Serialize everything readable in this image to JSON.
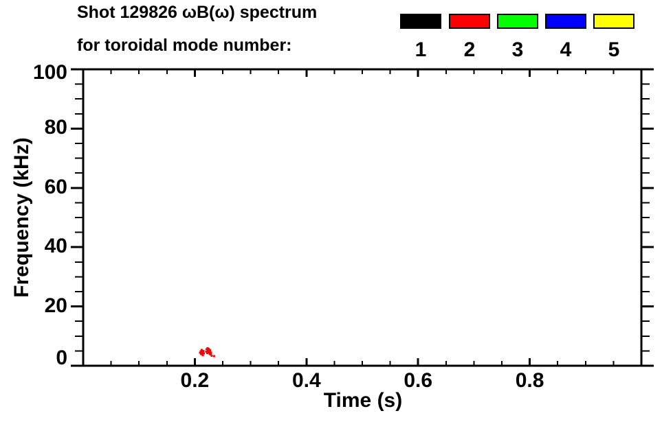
{
  "header": {
    "title_line1": "Shot 129826 ωB(ω) spectrum",
    "title_line2": "for toroidal mode number:"
  },
  "legend": {
    "items": [
      {
        "label": "1",
        "color": "#000000"
      },
      {
        "label": "2",
        "color": "#ff0000"
      },
      {
        "label": "3",
        "color": "#00ff00"
      },
      {
        "label": "4",
        "color": "#0000ff"
      },
      {
        "label": "5",
        "color": "#ffff00"
      }
    ]
  },
  "chart_data": {
    "type": "scatter",
    "title": "Shot 129826 ωB(ω) spectrum for toroidal mode number:",
    "xlabel": "Time (s)",
    "ylabel": "Frequency (kHz)",
    "xlim": [
      0.0,
      1.0
    ],
    "ylim": [
      0,
      100
    ],
    "grid": false,
    "legend_position": "top-right",
    "x_major_ticks": [
      0.2,
      0.4,
      0.6,
      0.8
    ],
    "x_major_tick_labels": [
      "0.2",
      "0.4",
      "0.6",
      "0.8"
    ],
    "x_minor_tick_interval": 0.05,
    "y_major_ticks": [
      0,
      20,
      40,
      60,
      80,
      100
    ],
    "y_major_tick_labels": [
      "0",
      "20",
      "40",
      "60",
      "80",
      "100"
    ],
    "y_minor_tick_interval": 5,
    "axis_color": "#000000",
    "series": [
      {
        "name": "1",
        "color": "#000000",
        "points": []
      },
      {
        "name": "2",
        "color": "#ff0000",
        "points": [
          [
            0.2095,
            4.4
          ],
          [
            0.2103,
            4.9
          ],
          [
            0.211,
            3.9
          ],
          [
            0.2117,
            4.6
          ],
          [
            0.2124,
            5.3
          ],
          [
            0.213,
            4.1
          ],
          [
            0.2137,
            4.7
          ],
          [
            0.2144,
            3.6
          ],
          [
            0.215,
            4.4
          ],
          [
            0.2156,
            5.0
          ],
          [
            0.2162,
            4.2
          ],
          [
            0.2205,
            4.8
          ],
          [
            0.2213,
            5.5
          ],
          [
            0.222,
            4.3
          ],
          [
            0.2228,
            5.9
          ],
          [
            0.2235,
            5.1
          ],
          [
            0.2242,
            4.5
          ],
          [
            0.2249,
            5.7
          ],
          [
            0.2256,
            4.9
          ],
          [
            0.2263,
            4.0
          ],
          [
            0.227,
            5.3
          ],
          [
            0.2277,
            4.6
          ],
          [
            0.2285,
            3.8
          ],
          [
            0.2292,
            4.4
          ],
          [
            0.23,
            3.4
          ],
          [
            0.2346,
            3.2
          ]
        ]
      },
      {
        "name": "3",
        "color": "#00ff00",
        "points": []
      },
      {
        "name": "4",
        "color": "#0000ff",
        "points": []
      },
      {
        "name": "5",
        "color": "#ffff00",
        "points": []
      }
    ]
  }
}
